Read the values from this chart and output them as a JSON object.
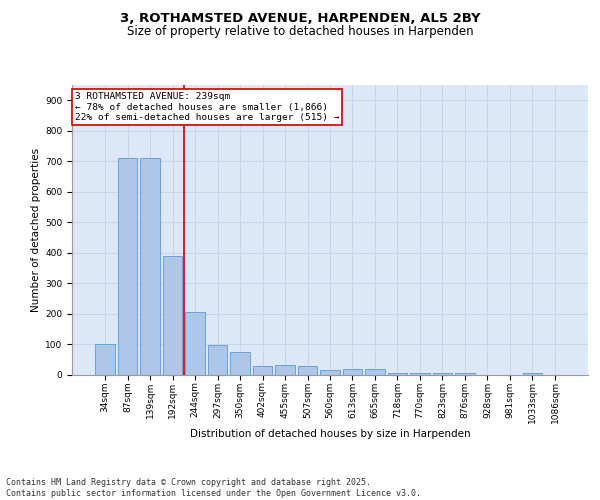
{
  "title_line1": "3, ROTHAMSTED AVENUE, HARPENDEN, AL5 2BY",
  "title_line2": "Size of property relative to detached houses in Harpenden",
  "xlabel": "Distribution of detached houses by size in Harpenden",
  "ylabel": "Number of detached properties",
  "categories": [
    "34sqm",
    "87sqm",
    "139sqm",
    "192sqm",
    "244sqm",
    "297sqm",
    "350sqm",
    "402sqm",
    "455sqm",
    "507sqm",
    "560sqm",
    "613sqm",
    "665sqm",
    "718sqm",
    "770sqm",
    "823sqm",
    "876sqm",
    "928sqm",
    "981sqm",
    "1033sqm",
    "1086sqm"
  ],
  "values": [
    102,
    712,
    712,
    390,
    208,
    97,
    74,
    30,
    32,
    30,
    18,
    20,
    20,
    8,
    6,
    7,
    7,
    0,
    0,
    5,
    0
  ],
  "bar_color": "#aec6e8",
  "bar_edge_color": "#5b9bd5",
  "grid_color": "#c8d4e8",
  "background_color": "#dce8f8",
  "vline_x_index": 3.5,
  "vline_color": "#cc0000",
  "annotation_box_text": "3 ROTHAMSTED AVENUE: 239sqm\n← 78% of detached houses are smaller (1,866)\n22% of semi-detached houses are larger (515) →",
  "annotation_box_color": "#cc0000",
  "annotation_box_bg": "#ffffff",
  "ylim": [
    0,
    950
  ],
  "yticks": [
    0,
    100,
    200,
    300,
    400,
    500,
    600,
    700,
    800,
    900
  ],
  "footer_text": "Contains HM Land Registry data © Crown copyright and database right 2025.\nContains public sector information licensed under the Open Government Licence v3.0.",
  "title_fontsize": 9.5,
  "subtitle_fontsize": 8.5,
  "axis_label_fontsize": 7.5,
  "tick_fontsize": 6.5,
  "annotation_fontsize": 6.8,
  "footer_fontsize": 6.0
}
